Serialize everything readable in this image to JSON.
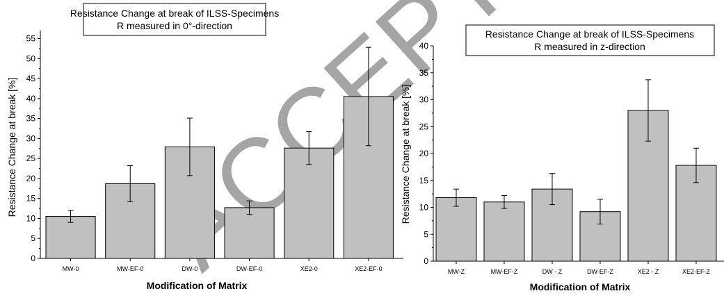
{
  "watermark": "ACCEPTED MANUSCRIPT",
  "chart_data": [
    {
      "type": "bar",
      "title": "Resistance Change at break of ILSS-Specimens",
      "subtitle": "R measured in 0°-direction",
      "xlabel": "Modification of Matrix",
      "ylabel": "Resistance Change at break [%]",
      "ylim": [
        0,
        57
      ],
      "yticks": [
        0,
        5,
        10,
        15,
        20,
        25,
        30,
        35,
        40,
        45,
        50,
        55
      ],
      "categories": [
        "MW-0",
        "MW-EF-0",
        "DW-0",
        "DW-EF-0",
        "XE2-0",
        "XE2-EF-0"
      ],
      "values": [
        10.5,
        18.7,
        27.9,
        12.7,
        27.6,
        40.5
      ],
      "errors": [
        1.5,
        4.5,
        7.2,
        1.7,
        4.1,
        12.3
      ],
      "bar_color": "#c0c0c0",
      "grid": false
    },
    {
      "type": "bar",
      "title": "Resistance Change at break of ILSS-Specimens",
      "subtitle": "R measured in z-direction",
      "xlabel": "Modification of Matrix",
      "ylabel": "Resistance Change at break [%]",
      "ylim": [
        0,
        40
      ],
      "yticks": [
        0,
        5,
        10,
        15,
        20,
        25,
        30,
        35,
        40
      ],
      "categories": [
        "MW-Z",
        "MW-EF-Z",
        "DW - Z",
        "DW-EF-Z",
        "XE2 - Z",
        "XE2-EF-Z"
      ],
      "values": [
        11.8,
        11.0,
        13.4,
        9.2,
        28.0,
        17.8
      ],
      "errors": [
        1.6,
        1.2,
        2.9,
        2.3,
        5.7,
        3.2
      ],
      "bar_color": "#c0c0c0",
      "grid": false
    }
  ]
}
